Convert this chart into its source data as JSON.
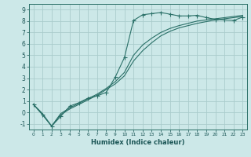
{
  "title": "",
  "xlabel": "Humidex (Indice chaleur)",
  "background_color": "#cce8e8",
  "grid_color": "#aacccc",
  "line_color": "#2a7068",
  "xlim": [
    -0.5,
    23.5
  ],
  "ylim": [
    -1.5,
    9.5
  ],
  "yticks": [
    -1,
    0,
    1,
    2,
    3,
    4,
    5,
    6,
    7,
    8,
    9
  ],
  "xticks": [
    0,
    1,
    2,
    3,
    4,
    5,
    6,
    7,
    8,
    9,
    10,
    11,
    12,
    13,
    14,
    15,
    16,
    17,
    18,
    19,
    20,
    21,
    22,
    23
  ],
  "line1_x": [
    0,
    1,
    2,
    3,
    4,
    5,
    6,
    7,
    8,
    9,
    10,
    11,
    12,
    13,
    14,
    15,
    16,
    17,
    18,
    19,
    20,
    21,
    22,
    23
  ],
  "line1_y": [
    0.7,
    -0.2,
    -1.2,
    -0.35,
    0.55,
    0.85,
    1.25,
    1.45,
    1.75,
    3.1,
    4.8,
    8.05,
    8.55,
    8.65,
    8.75,
    8.6,
    8.45,
    8.45,
    8.5,
    8.3,
    8.15,
    8.1,
    8.05,
    8.35
  ],
  "line2_x": [
    0,
    1,
    2,
    3,
    4,
    5,
    6,
    7,
    8,
    9,
    10,
    11,
    12,
    13,
    14,
    15,
    16,
    17,
    18,
    19,
    20,
    21,
    22,
    23
  ],
  "line2_y": [
    0.7,
    -0.2,
    -1.2,
    -0.2,
    0.3,
    0.7,
    1.1,
    1.5,
    2.0,
    2.5,
    3.2,
    4.5,
    5.4,
    6.1,
    6.7,
    7.1,
    7.4,
    7.6,
    7.8,
    7.95,
    8.1,
    8.2,
    8.3,
    8.4
  ],
  "line3_x": [
    0,
    1,
    2,
    3,
    4,
    5,
    6,
    7,
    8,
    9,
    10,
    11,
    12,
    13,
    14,
    15,
    16,
    17,
    18,
    19,
    20,
    21,
    22,
    23
  ],
  "line3_y": [
    0.7,
    -0.1,
    -1.2,
    -0.1,
    0.4,
    0.8,
    1.2,
    1.6,
    2.1,
    2.7,
    3.5,
    5.0,
    5.9,
    6.5,
    7.0,
    7.35,
    7.6,
    7.8,
    8.0,
    8.1,
    8.2,
    8.3,
    8.4,
    8.5
  ]
}
